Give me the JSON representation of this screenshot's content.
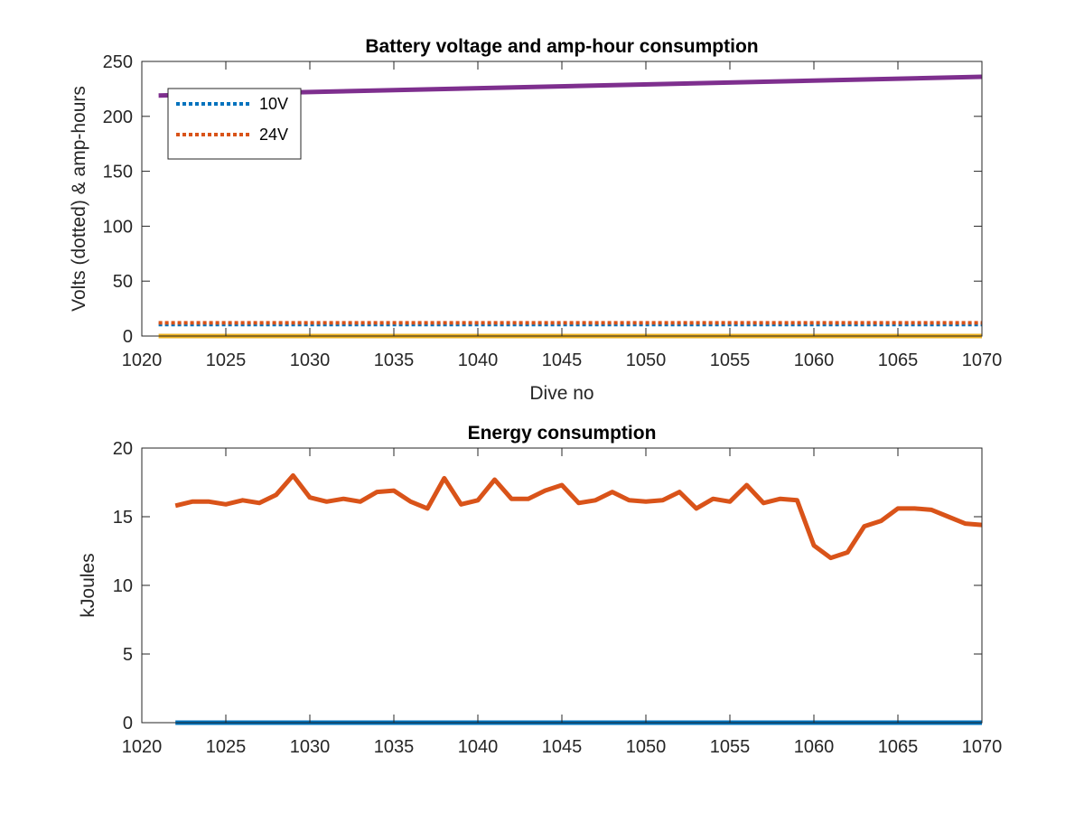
{
  "chart_data": [
    {
      "type": "line",
      "title": "Battery voltage and amp-hour consumption",
      "xlabel": "Dive no",
      "ylabel": "Volts (dotted) & amp-hours",
      "xlim": [
        1020,
        1070
      ],
      "ylim": [
        0,
        250
      ],
      "x_ticks": [
        1020,
        1025,
        1030,
        1035,
        1040,
        1045,
        1050,
        1055,
        1060,
        1065,
        1070
      ],
      "y_ticks": [
        0,
        50,
        100,
        150,
        200,
        250
      ],
      "grid": false,
      "legend_position": "top-left",
      "series": [
        {
          "name": "10V",
          "style": "dotted",
          "color": "#0072BD",
          "x": [
            1021,
            1070
          ],
          "y": [
            10.5,
            10.5
          ]
        },
        {
          "name": "24V",
          "style": "dotted",
          "color": "#D95319",
          "x": [
            1021,
            1070
          ],
          "y": [
            12,
            12
          ]
        },
        {
          "style": "solid",
          "color": "#7E2F8E",
          "x": [
            1021,
            1070
          ],
          "y": [
            219,
            236
          ]
        },
        {
          "style": "solid",
          "color": "#EDB120",
          "x": [
            1021,
            1070
          ],
          "y": [
            0,
            0
          ]
        }
      ]
    },
    {
      "type": "line",
      "title": "Energy consumption",
      "xlabel": "",
      "ylabel": "kJoules",
      "xlim": [
        1020,
        1070
      ],
      "ylim": [
        0,
        20
      ],
      "x_ticks": [
        1020,
        1025,
        1030,
        1035,
        1040,
        1045,
        1050,
        1055,
        1060,
        1065,
        1070
      ],
      "y_ticks": [
        0,
        5,
        10,
        15,
        20
      ],
      "grid": false,
      "series": [
        {
          "style": "solid",
          "color": "#D95319",
          "x": [
            1022,
            1023,
            1024,
            1025,
            1026,
            1027,
            1028,
            1029,
            1030,
            1031,
            1032,
            1033,
            1034,
            1035,
            1036,
            1037,
            1038,
            1039,
            1040,
            1041,
            1042,
            1043,
            1044,
            1045,
            1046,
            1047,
            1048,
            1049,
            1050,
            1051,
            1052,
            1053,
            1054,
            1055,
            1056,
            1057,
            1058,
            1059,
            1060,
            1061,
            1062,
            1063,
            1064,
            1065,
            1066,
            1067,
            1068,
            1069,
            1070
          ],
          "y": [
            15.8,
            16.1,
            16.1,
            15.9,
            16.2,
            16.0,
            16.6,
            18.0,
            16.4,
            16.1,
            16.3,
            16.1,
            16.8,
            16.9,
            16.1,
            15.6,
            17.8,
            15.9,
            16.2,
            17.7,
            16.3,
            16.3,
            16.9,
            17.3,
            16.0,
            16.2,
            16.8,
            16.2,
            16.1,
            16.2,
            16.8,
            15.6,
            16.3,
            16.1,
            17.3,
            16.0,
            16.3,
            16.2,
            12.9,
            12.0,
            12.4,
            14.3,
            14.7,
            15.6,
            15.6,
            15.5,
            15.0,
            14.5,
            14.4
          ]
        },
        {
          "style": "solid",
          "color": "#0072BD",
          "x": [
            1022,
            1070
          ],
          "y": [
            0,
            0
          ]
        }
      ]
    }
  ]
}
